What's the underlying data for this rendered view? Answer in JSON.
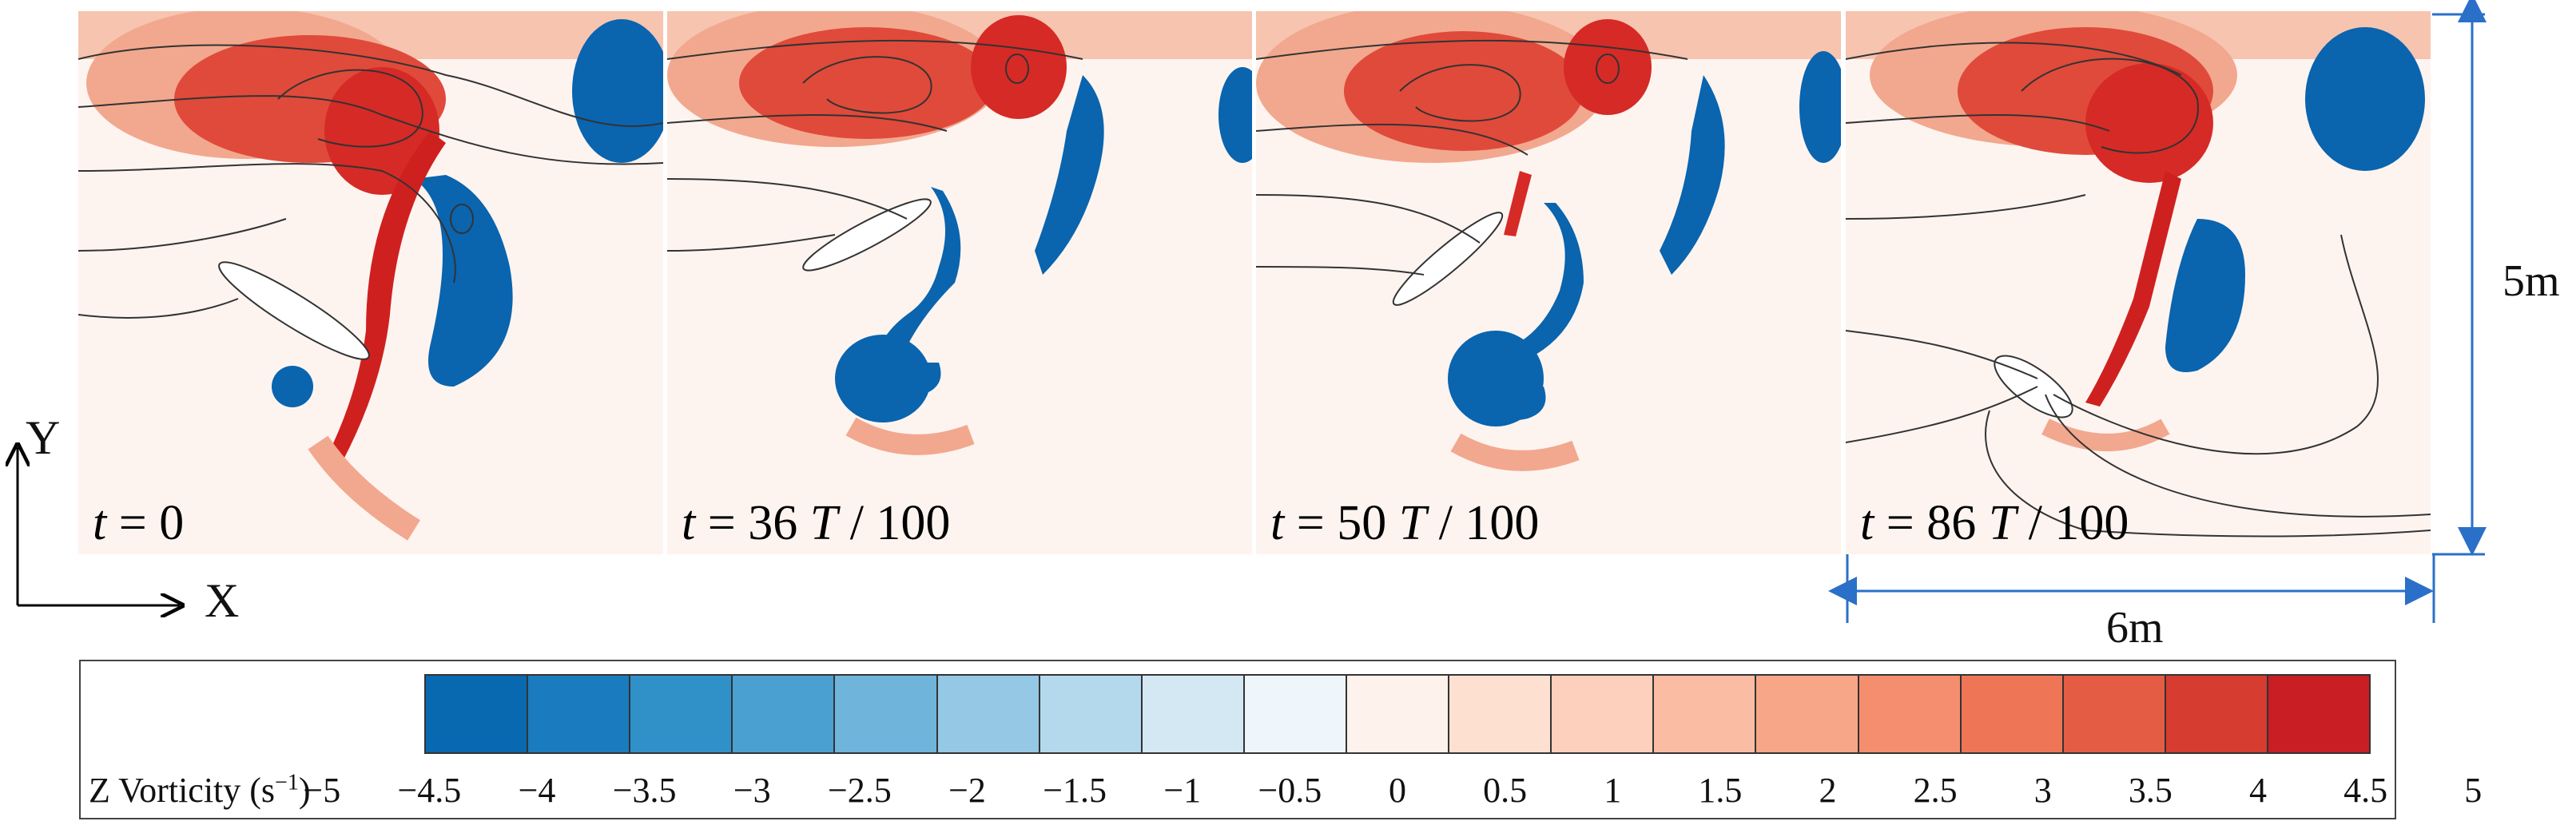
{
  "panels": [
    {
      "time_prefix": "t",
      "time_value": "= 0",
      "time_unit": "",
      "time_suffix": ""
    },
    {
      "time_prefix": "t",
      "time_value": "= 36",
      "time_unit": "T",
      "time_suffix": "/ 100"
    },
    {
      "time_prefix": "t",
      "time_value": "= 50",
      "time_unit": "T",
      "time_suffix": "/ 100"
    },
    {
      "time_prefix": "t",
      "time_value": "= 86",
      "time_unit": "T",
      "time_suffix": "/ 100"
    }
  ],
  "axes": {
    "x_label": "X",
    "y_label": "Y"
  },
  "dimensions": {
    "height_label": "5m",
    "width_label": "6m"
  },
  "colorbar": {
    "title": "Z Vorticity (s",
    "title_sup": "−1",
    "title_end": ")",
    "ticks": [
      "−5",
      "−4.5",
      "−4",
      "−3.5",
      "−3",
      "−2.5",
      "−2",
      "−1.5",
      "−1",
      "−0.5",
      "0",
      "0.5",
      "1",
      "1.5",
      "2",
      "2.5",
      "3",
      "3.5",
      "4",
      "4.5",
      "5"
    ],
    "colors": [
      "#0868b0",
      "#1a7cbe",
      "#3090c8",
      "#4aa0d0",
      "#6fb4da",
      "#94c8e4",
      "#b4d8ec",
      "#d4e8f4",
      "#eef5fb",
      "#fdf2ec",
      "#fde0d0",
      "#fcd0bc",
      "#fbbca4",
      "#f8a688",
      "#f48e6e",
      "#ee7656",
      "#e45c44",
      "#d63c30",
      "#c81e24"
    ]
  },
  "colors": {
    "positive": "#d42a2a",
    "negative": "#0a64ae",
    "background": "#fdf4f0"
  }
}
